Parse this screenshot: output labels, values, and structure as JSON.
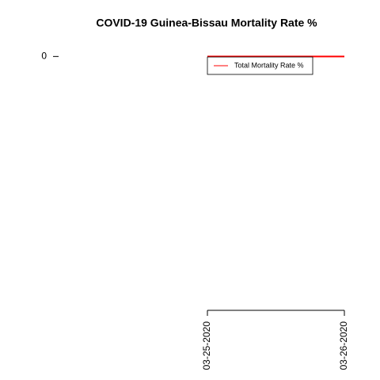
{
  "chart_data": {
    "type": "line",
    "title": "COVID-19 Guinea-Bissau Mortality Rate %",
    "x": [
      "03-25-2020",
      "03-26-2020"
    ],
    "series": [
      {
        "name": "Total Mortality Rate %",
        "color": "#ff0000",
        "values": [
          0,
          0
        ]
      }
    ],
    "ylim": [
      -1.04,
      0.04
    ],
    "yticks": [
      0
    ],
    "legend": "top-right"
  }
}
